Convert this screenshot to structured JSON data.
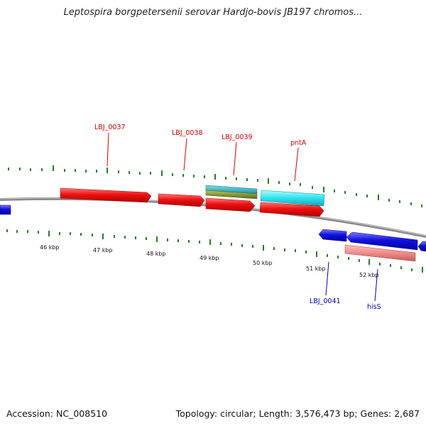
{
  "title": "Leptospira borgpetersenii serovar Hardjo-bovis JB197 chromos...",
  "footer": {
    "accession": "Accession: NC_008510",
    "summary": "Topology: circular; Length: 3,576,473 bp; Genes: 2,687"
  },
  "scale": {
    "ticks": [
      "46 kbp",
      "47 kbp",
      "48 kbp",
      "49 kbp",
      "50 kbp",
      "51 kbp",
      "52 kbp"
    ]
  },
  "gene_labels": [
    {
      "text": "LBJ_0037",
      "color": "#cc0000"
    },
    {
      "text": "LBJ_0038",
      "color": "#cc0000"
    },
    {
      "text": "LBJ_0039",
      "color": "#cc0000"
    },
    {
      "text": "pntA",
      "color": "#cc0000"
    },
    {
      "text": "LBJ_0041",
      "color": "#0000aa"
    },
    {
      "text": "hisS",
      "color": "#0000aa"
    }
  ],
  "colors": {
    "forward_cds": "#ee1111",
    "reverse_cds": "#1111dd",
    "cyan_feature": "#33e6f0",
    "olive_feature": "#7a8a2a",
    "pink_feature": "#f08a8a",
    "backbone": "#8a8a8a",
    "tick_marks": "#2a7a2a"
  }
}
